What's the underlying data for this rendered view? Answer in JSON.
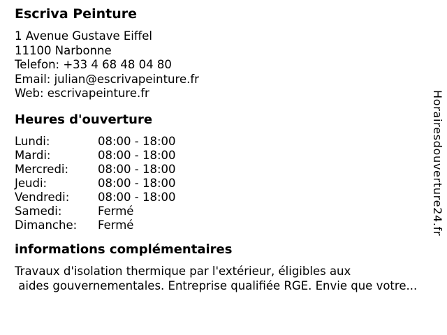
{
  "colors": {
    "background": "#ffffff",
    "text": "#000000"
  },
  "business": {
    "name": "Escriva Peinture",
    "contact_lines": [
      "1 Avenue Gustave Eiffel",
      "11100 Narbonne",
      "Telefon: +33 4 68 48 04 80",
      "Email: julian@escrivapeinture.fr",
      "Web: escrivapeinture.fr"
    ]
  },
  "hours": {
    "heading": "Heures d'ouverture",
    "rows": [
      {
        "day": "Lundi:",
        "time": "08:00 - 18:00"
      },
      {
        "day": "Mardi:",
        "time": "08:00 - 18:00"
      },
      {
        "day": "Mercredi:",
        "time": "08:00 - 18:00"
      },
      {
        "day": "Jeudi:",
        "time": "08:00 - 18:00"
      },
      {
        "day": "Vendredi:",
        "time": "08:00 - 18:00"
      },
      {
        "day": "Samedi:",
        "time": "Fermé"
      },
      {
        "day": "Dimanche:",
        "time": "Fermé"
      }
    ]
  },
  "info": {
    "heading": "informations complémentaires",
    "text": "Travaux d'isolation thermique par l'extérieur, éligibles aux\n aides gouvernementales. Entreprise qualifiée RGE. Envie que votre..."
  },
  "watermark": "Horairesdouverture24.fr"
}
